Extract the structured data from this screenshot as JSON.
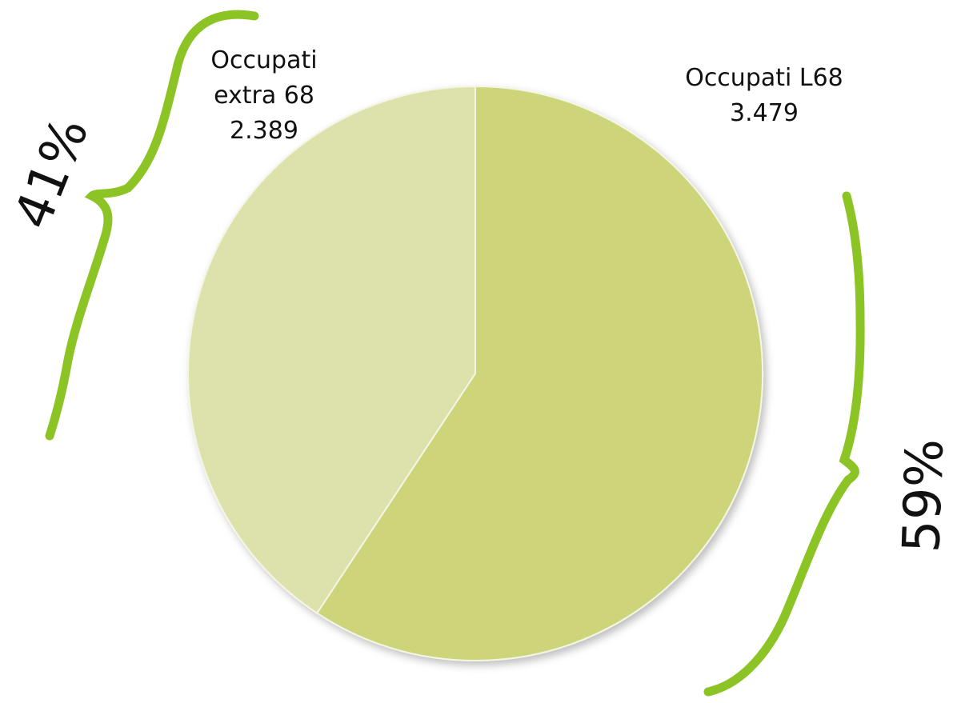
{
  "chart_data": {
    "type": "pie",
    "categories": [
      "Occupati L68",
      "Occupati extra 68"
    ],
    "values": [
      3479,
      2389
    ],
    "value_labels": [
      "3.479",
      "2.389"
    ],
    "colors": [
      "#cdd47a",
      "#dde2ad"
    ],
    "annotations": [
      "59%",
      "41%"
    ]
  }
}
